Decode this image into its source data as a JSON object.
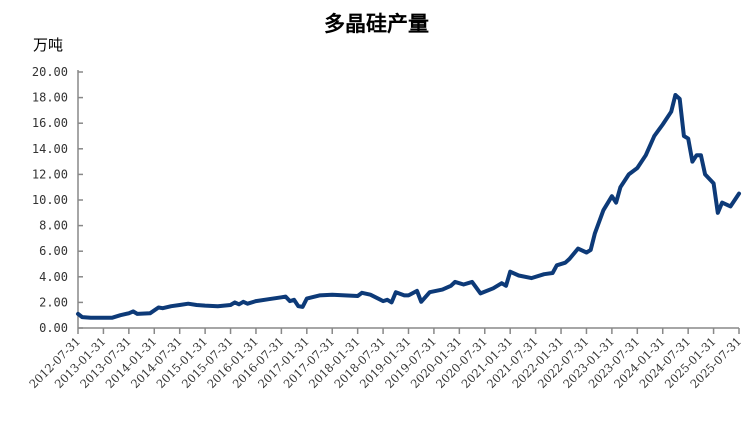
{
  "chart_data": {
    "type": "line",
    "title": "多晶硅产量",
    "ylabel": "万吨",
    "xlabel": "",
    "ylim": [
      0,
      20
    ],
    "yticks": [
      "0.00",
      "2.00",
      "4.00",
      "6.00",
      "8.00",
      "10.00",
      "12.00",
      "14.00",
      "16.00",
      "18.00",
      "20.00"
    ],
    "xticks": [
      "2012-07-31",
      "2013-01-31",
      "2013-07-31",
      "2014-01-31",
      "2014-07-31",
      "2015-01-31",
      "2015-07-31",
      "2016-01-31",
      "2016-07-31",
      "2017-01-31",
      "2017-07-31",
      "2018-01-31",
      "2018-07-31",
      "2019-01-31",
      "2019-07-31",
      "2020-01-31",
      "2020-07-31",
      "2021-01-31",
      "2021-07-31",
      "2022-01-31",
      "2022-07-31",
      "2023-01-31",
      "2023-07-31",
      "2024-01-31",
      "2024-07-31",
      "2025-01-31",
      "2025-07-31"
    ],
    "grid": false,
    "color": "#0d3a78",
    "series": [
      {
        "x": [
          "2012-07",
          "2012-08",
          "2012-10",
          "2013-01",
          "2013-03",
          "2013-05",
          "2013-07",
          "2013-08",
          "2013-09",
          "2013-12",
          "2014-02",
          "2014-03",
          "2014-05",
          "2014-07",
          "2014-09",
          "2014-11",
          "2015-01",
          "2015-04",
          "2015-07",
          "2015-08",
          "2015-09",
          "2015-10",
          "2015-11",
          "2016-01",
          "2016-04",
          "2016-07",
          "2016-08",
          "2016-09",
          "2016-10",
          "2016-11",
          "2016-12",
          "2017-01",
          "2017-04",
          "2017-07",
          "2017-10",
          "2018-01",
          "2018-02",
          "2018-04",
          "2018-07",
          "2018-08",
          "2018-09",
          "2018-10",
          "2018-12",
          "2019-01",
          "2019-03",
          "2019-04",
          "2019-06",
          "2019-09",
          "2019-11",
          "2019-12",
          "2020-02",
          "2020-04",
          "2020-06",
          "2020-09",
          "2020-11",
          "2020-12",
          "2021-01",
          "2021-03",
          "2021-06",
          "2021-09",
          "2021-11",
          "2021-12",
          "2022-02",
          "2022-03",
          "2022-05",
          "2022-07",
          "2022-08",
          "2022-09",
          "2022-11",
          "2023-01",
          "2023-02",
          "2023-03",
          "2023-05",
          "2023-07",
          "2023-09",
          "2023-11",
          "2024-01",
          "2024-03",
          "2024-04",
          "2024-05",
          "2024-06",
          "2024-07",
          "2024-08",
          "2024-09",
          "2024-10",
          "2024-11",
          "2025-01",
          "2025-02",
          "2025-03",
          "2025-05",
          "2025-07"
        ],
        "values": [
          1.1,
          0.85,
          0.8,
          0.8,
          0.8,
          1.0,
          1.15,
          1.3,
          1.1,
          1.15,
          1.6,
          1.55,
          1.7,
          1.8,
          1.9,
          1.8,
          1.75,
          1.7,
          1.8,
          2.0,
          1.85,
          2.05,
          1.9,
          2.1,
          2.25,
          2.4,
          2.45,
          2.1,
          2.2,
          1.7,
          1.65,
          2.3,
          2.55,
          2.6,
          2.55,
          2.5,
          2.75,
          2.6,
          2.1,
          2.2,
          2.0,
          2.8,
          2.55,
          2.55,
          2.9,
          2.05,
          2.8,
          3.0,
          3.3,
          3.6,
          3.4,
          3.6,
          2.7,
          3.1,
          3.5,
          3.3,
          4.4,
          4.1,
          3.9,
          4.2,
          4.3,
          4.9,
          5.1,
          5.4,
          6.2,
          5.9,
          6.1,
          7.4,
          9.2,
          10.3,
          9.8,
          11.0,
          12.0,
          12.5,
          13.5,
          15.0,
          15.9,
          16.9,
          18.2,
          17.9,
          15.0,
          14.8,
          13.0,
          13.5,
          13.5,
          12.0,
          11.3,
          9.0,
          9.8,
          9.5,
          10.5
        ]
      }
    ]
  }
}
